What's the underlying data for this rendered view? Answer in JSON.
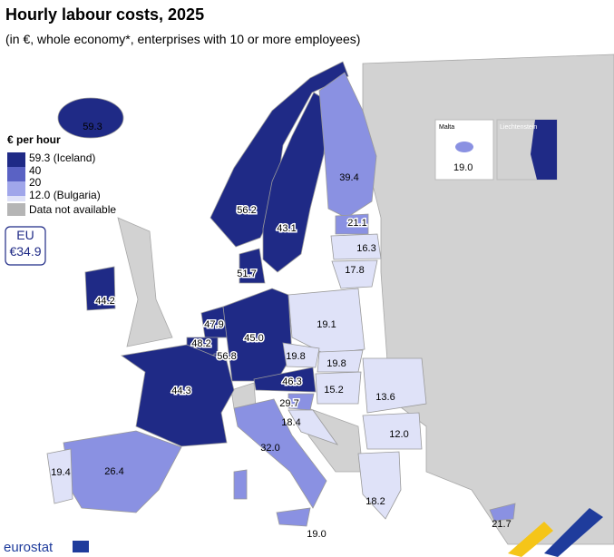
{
  "header": {
    "title": "Hourly labour costs, 2025",
    "subtitle": "(in €, whole economy*, enterprises with 10 or more employees)"
  },
  "legend": {
    "title": "€ per hour",
    "items": [
      "59.3 (Iceland)",
      "40",
      "20",
      "12.0 (Bulgaria)",
      "Data not available"
    ]
  },
  "eu_box": {
    "label": "EU",
    "value": "€34.9"
  },
  "labels": [
    "59.3",
    "56.2",
    "43.1",
    "39.4",
    "21.1",
    "16.3",
    "17.8",
    "51.7",
    "44.2",
    "47.9",
    "48.2",
    "56.8",
    "45.0",
    "19.1",
    "19.8",
    "19.8",
    "46.3",
    "44.3",
    "15.2",
    "13.6",
    "29.7",
    "18.4",
    "12.0",
    "32.0",
    "26.4",
    "19.4",
    "18.2",
    "21.7",
    "19.0"
  ],
  "insets": {
    "malta_name": "Malta",
    "malta_value": "19.0",
    "liechtenstein_name": "Liechtenstein"
  },
  "footer": {
    "brand": "eurostat"
  }
}
